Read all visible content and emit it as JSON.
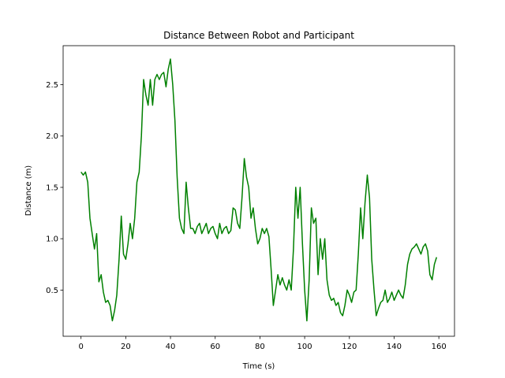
{
  "chart_data": {
    "type": "line",
    "title": "Distance Between Robot and Participant",
    "xlabel": "Time (s)",
    "ylabel": "Distance (m)",
    "xlim": [
      -8,
      167
    ],
    "ylim": [
      0.05,
      2.88
    ],
    "xticks": [
      0,
      20,
      40,
      60,
      80,
      100,
      120,
      140,
      160
    ],
    "yticks": [
      0.5,
      1.0,
      1.5,
      2.0,
      2.5
    ],
    "xtick_labels": [
      "0",
      "20",
      "40",
      "60",
      "80",
      "100",
      "120",
      "140",
      "160"
    ],
    "ytick_labels": [
      "0.5",
      "1.0",
      "1.5",
      "2.0",
      "2.5"
    ],
    "grid": false,
    "series": [
      {
        "color": "#008000",
        "x": [
          0,
          1,
          2,
          3,
          4,
          5,
          6,
          7,
          8,
          9,
          10,
          11,
          12,
          13,
          14,
          15,
          16,
          17,
          18,
          19,
          20,
          21,
          22,
          23,
          24,
          25,
          26,
          27,
          28,
          29,
          30,
          31,
          32,
          33,
          34,
          35,
          36,
          37,
          38,
          39,
          40,
          41,
          42,
          43,
          44,
          45,
          46,
          47,
          48,
          49,
          50,
          51,
          52,
          53,
          54,
          55,
          56,
          57,
          58,
          59,
          60,
          61,
          62,
          63,
          64,
          65,
          66,
          67,
          68,
          69,
          70,
          71,
          72,
          73,
          74,
          75,
          76,
          77,
          78,
          79,
          80,
          81,
          82,
          83,
          84,
          85,
          86,
          87,
          88,
          89,
          90,
          91,
          92,
          93,
          94,
          95,
          96,
          97,
          98,
          99,
          100,
          101,
          102,
          103,
          104,
          105,
          106,
          107,
          108,
          109,
          110,
          111,
          112,
          113,
          114,
          115,
          116,
          117,
          118,
          119,
          120,
          121,
          122,
          123,
          124,
          125,
          126,
          127,
          128,
          129,
          130,
          131,
          132,
          133,
          134,
          135,
          136,
          137,
          138,
          139,
          140,
          141,
          142,
          143,
          144,
          145,
          146,
          147,
          148,
          149,
          150,
          151,
          152,
          153,
          154,
          155,
          156,
          157,
          158,
          159
        ],
        "y": [
          1.65,
          1.62,
          1.65,
          1.55,
          1.2,
          1.05,
          0.9,
          1.05,
          0.58,
          0.65,
          0.48,
          0.38,
          0.4,
          0.35,
          0.2,
          0.3,
          0.45,
          0.8,
          1.22,
          0.85,
          0.8,
          0.95,
          1.15,
          1.0,
          1.2,
          1.55,
          1.65,
          2.0,
          2.55,
          2.4,
          2.3,
          2.55,
          2.3,
          2.55,
          2.6,
          2.55,
          2.6,
          2.62,
          2.48,
          2.65,
          2.75,
          2.5,
          2.15,
          1.6,
          1.2,
          1.1,
          1.05,
          1.55,
          1.3,
          1.1,
          1.1,
          1.05,
          1.12,
          1.15,
          1.05,
          1.1,
          1.15,
          1.05,
          1.1,
          1.12,
          1.05,
          1.0,
          1.15,
          1.05,
          1.1,
          1.12,
          1.05,
          1.08,
          1.3,
          1.28,
          1.15,
          1.1,
          1.4,
          1.78,
          1.6,
          1.5,
          1.2,
          1.3,
          1.1,
          0.95,
          1.0,
          1.1,
          1.05,
          1.1,
          1.02,
          0.7,
          0.35,
          0.5,
          0.65,
          0.55,
          0.62,
          0.55,
          0.5,
          0.6,
          0.5,
          0.9,
          1.5,
          1.2,
          1.5,
          0.95,
          0.5,
          0.2,
          0.6,
          1.3,
          1.15,
          1.2,
          0.65,
          1.0,
          0.8,
          1.0,
          0.6,
          0.45,
          0.4,
          0.42,
          0.35,
          0.38,
          0.28,
          0.25,
          0.35,
          0.5,
          0.45,
          0.38,
          0.48,
          0.5,
          0.85,
          1.3,
          1.0,
          1.35,
          1.62,
          1.4,
          0.8,
          0.5,
          0.25,
          0.32,
          0.38,
          0.4,
          0.5,
          0.38,
          0.42,
          0.48,
          0.4,
          0.45,
          0.5,
          0.45,
          0.42,
          0.55,
          0.75,
          0.85,
          0.9,
          0.92,
          0.95,
          0.9,
          0.85,
          0.92,
          0.95,
          0.88,
          0.65,
          0.6,
          0.75,
          0.82
        ]
      }
    ]
  }
}
